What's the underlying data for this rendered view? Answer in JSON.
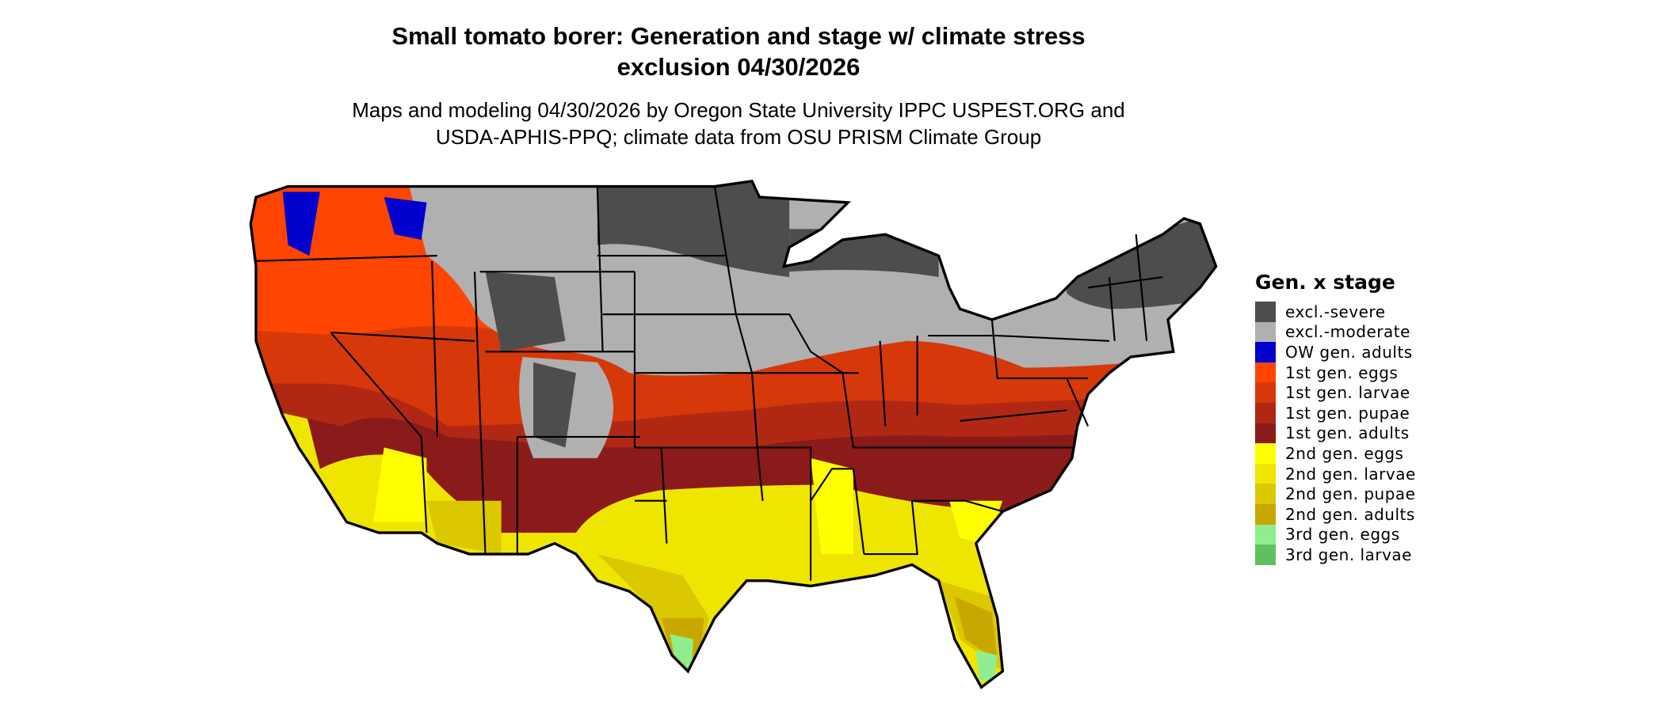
{
  "title_line1": "Small tomato borer: Generation and stage w/ climate stress",
  "title_line2": "exclusion 04/30/2026",
  "subtitle_line1": "Maps and modeling 04/30/2026 by Oregon State University IPPC USPEST.ORG and",
  "subtitle_line2": "USDA-APHIS-PPQ; climate data from OSU PRISM Climate Group",
  "legend": {
    "title": "Gen. x stage",
    "items": [
      {
        "label": "excl.-severe",
        "color": "#4d4d4d"
      },
      {
        "label": "excl.-moderate",
        "color": "#b0b0b0"
      },
      {
        "label": "OW gen. adults",
        "color": "#0000cd"
      },
      {
        "label": "1st gen. eggs",
        "color": "#ff4500"
      },
      {
        "label": "1st gen. larvae",
        "color": "#d6380a"
      },
      {
        "label": "1st gen. pupae",
        "color": "#b02814"
      },
      {
        "label": "1st gen. adults",
        "color": "#8b1a1a"
      },
      {
        "label": "2nd gen. eggs",
        "color": "#ffff00"
      },
      {
        "label": "2nd gen. larvae",
        "color": "#eee600"
      },
      {
        "label": "2nd gen. pupae",
        "color": "#dcc800"
      },
      {
        "label": "2nd gen. adults",
        "color": "#c8a800"
      },
      {
        "label": "3rd gen. eggs",
        "color": "#90ee90"
      },
      {
        "label": "3rd gen. larvae",
        "color": "#60c060"
      }
    ]
  }
}
